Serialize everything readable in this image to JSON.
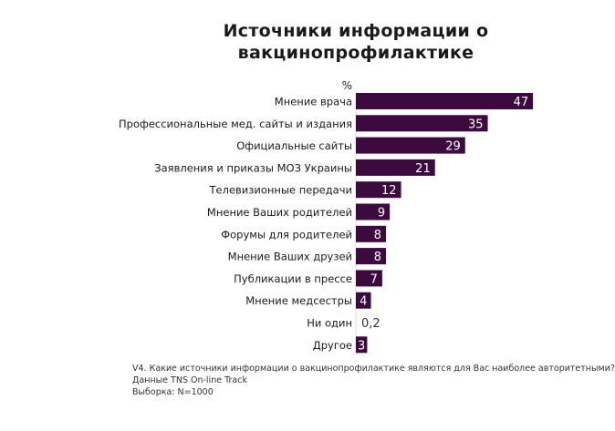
{
  "chart_data": {
    "type": "bar",
    "orientation": "horizontal",
    "title_lines": [
      "Источники информации о",
      "вакцинопрофилактике"
    ],
    "unit_label": "%",
    "categories": [
      "Мнение врача",
      "Профессиональные мед. сайты и издания",
      "Официальные сайты",
      "Заявления и приказы МОЗ Украины",
      "Телевизионные передачи",
      "Мнение Ваших родителей",
      "Форумы для родителей",
      "Мнение Ваших друзей",
      "Публикации  в прессе",
      "Мнение медсестры",
      "Ни один",
      "Другое"
    ],
    "values": [
      47,
      35,
      29,
      21,
      12,
      9,
      8,
      8,
      7,
      4,
      0.2,
      3
    ],
    "value_labels": [
      "47",
      "35",
      "29",
      "21",
      "12",
      "9",
      "8",
      "8",
      "7",
      "4",
      "0,2",
      "3"
    ],
    "xlim": [
      0,
      47
    ],
    "grid": false,
    "legend": "none",
    "bar_color": "#3d0a3f"
  },
  "footnote": {
    "question": "V4. Какие источники информации о вакцинопрофилактике являются для  Вас наиболее авторитетными?",
    "source": "Данные TNS On-line Track",
    "sample": "Выборка: N=1000"
  }
}
